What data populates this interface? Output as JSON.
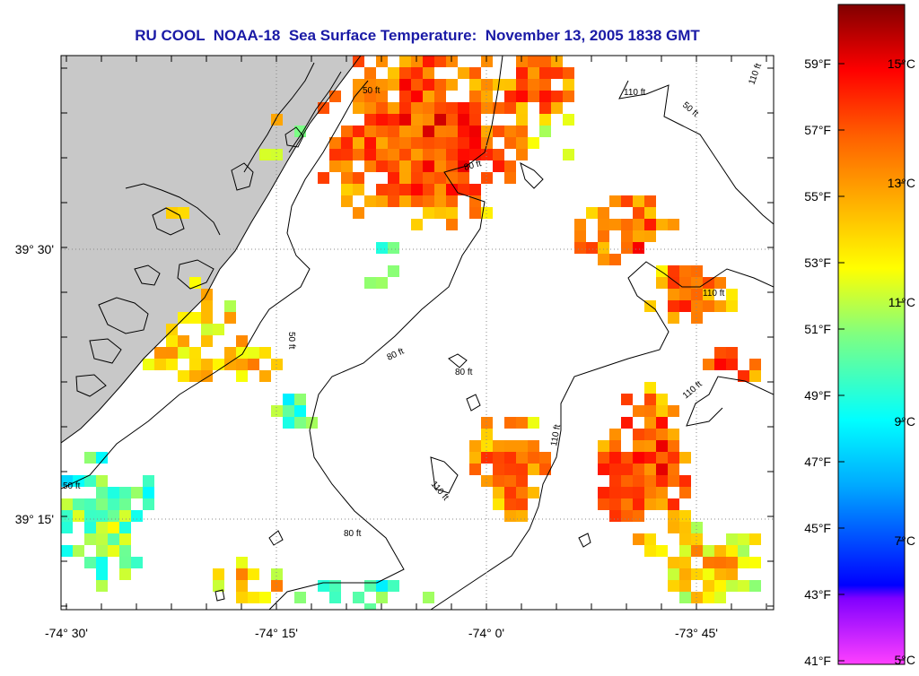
{
  "title": "RU COOL  NOAA-18  Sea Surface Temperature:  November 13, 2005 1838 GMT",
  "map": {
    "lon_labels": [
      "-74° 30'",
      "-74° 15'",
      "-74° 0'",
      "-73° 45'"
    ],
    "lat_labels": [
      "39° 30'",
      "39° 15'"
    ],
    "depth_contours": [
      "50 ft",
      "80 ft",
      "110 ft"
    ],
    "land_color": "#c8c8c8"
  },
  "colorbar": {
    "fahrenheit_labels": [
      "59°F",
      "57°F",
      "55°F",
      "53°F",
      "51°F",
      "49°F",
      "47°F",
      "45°F",
      "43°F",
      "41°F"
    ],
    "celsius_labels": [
      "15°C",
      "13°C",
      "11°C",
      "9°C",
      "7°C",
      "5°C"
    ],
    "colors": [
      "#ff40ff",
      "#8000ff",
      "#0000ff",
      "#00b0ff",
      "#00ffff",
      "#80ff80",
      "#ffff00",
      "#ffb000",
      "#ff6000",
      "#ff0000",
      "#800000"
    ]
  }
}
